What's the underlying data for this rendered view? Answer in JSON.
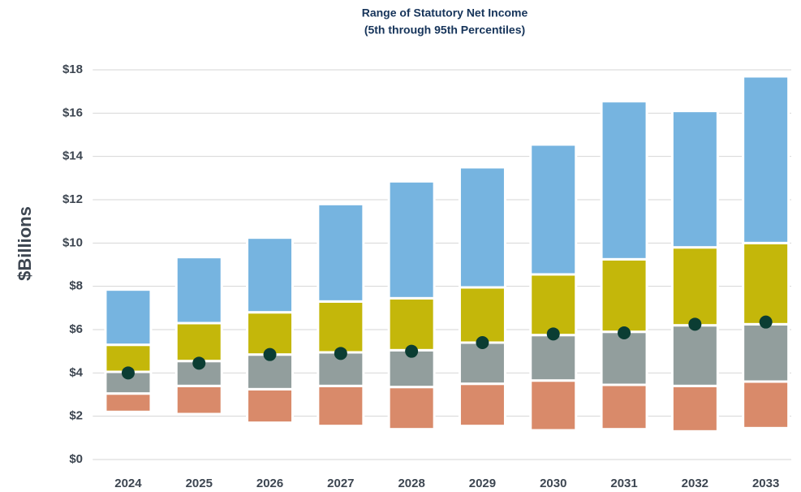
{
  "chart_data": {
    "type": "floating-stacked-bar",
    "title": "Range of Statutory Net Income",
    "subtitle": "(5th through 95th Percentiles)",
    "y_label": "$Billions",
    "categories": [
      "2024",
      "2025",
      "2026",
      "2027",
      "2028",
      "2029",
      "2030",
      "2031",
      "2032",
      "2033"
    ],
    "percentiles": [
      [
        2.2,
        2.1,
        1.7,
        1.55,
        1.4,
        1.55,
        1.35,
        1.4,
        1.3,
        1.45
      ],
      [
        3.05,
        3.4,
        3.25,
        3.4,
        3.35,
        3.5,
        3.65,
        3.45,
        3.4,
        3.6
      ],
      [
        4.05,
        4.55,
        4.85,
        4.95,
        5.05,
        5.4,
        5.75,
        5.9,
        6.2,
        6.25
      ],
      [
        5.3,
        6.3,
        6.8,
        7.3,
        7.45,
        7.95,
        8.55,
        9.25,
        9.8,
        10.0
      ],
      [
        7.85,
        9.35,
        10.25,
        11.8,
        12.85,
        13.5,
        14.55,
        16.55,
        16.1,
        17.7
      ]
    ],
    "band_colors": [
      "#d98a6a",
      "#929e9d",
      "#c4b70a",
      "#76b4e0"
    ],
    "points": {
      "color": "#0b3d33",
      "values": [
        4.0,
        4.45,
        4.85,
        4.9,
        5.0,
        5.4,
        5.8,
        5.85,
        6.25,
        6.35
      ]
    },
    "ylim": [
      0,
      18
    ],
    "yticks": [
      {
        "value": 0,
        "label": "$0"
      },
      {
        "value": 2,
        "label": "$2"
      },
      {
        "value": 4,
        "label": "$4"
      },
      {
        "value": 6,
        "label": "$6"
      },
      {
        "value": 8,
        "label": "$8"
      },
      {
        "value": 10,
        "label": "$10"
      },
      {
        "value": 12,
        "label": "$12"
      },
      {
        "value": 14,
        "label": "$14"
      },
      {
        "value": 16,
        "label": "$16"
      },
      {
        "value": 18,
        "label": "$18"
      }
    ],
    "grid": true
  }
}
